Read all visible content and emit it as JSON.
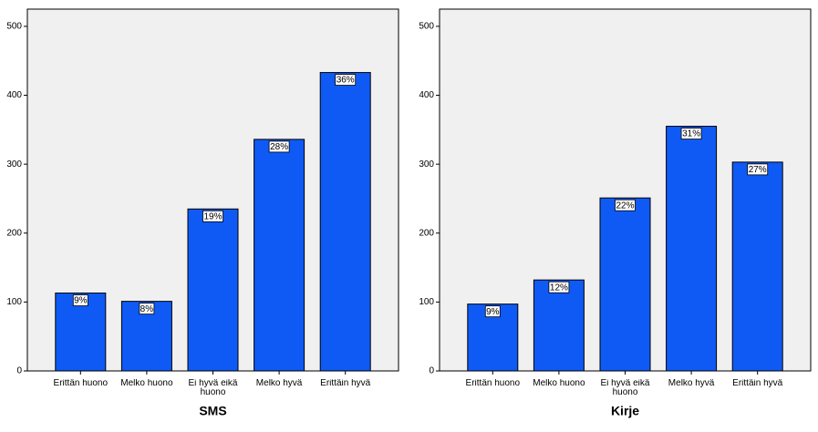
{
  "chart_data": [
    {
      "type": "bar",
      "title": "SMS",
      "categories": [
        "Erittän huono",
        "Melko huono",
        "Ei hyvä eikä huono",
        "Melko hyvä",
        "Erittäin hyvä"
      ],
      "values": [
        113,
        101,
        235,
        336,
        433
      ],
      "percent_labels": [
        "9%",
        "8%",
        "19%",
        "28%",
        "36%"
      ],
      "color": "#0f5af5",
      "ylim": [
        0,
        525
      ],
      "yticks": [
        0,
        100,
        200,
        300,
        400,
        500
      ]
    },
    {
      "type": "bar",
      "title": "Kirje",
      "categories": [
        "Erittän huono",
        "Melko huono",
        "Ei hyvä eikä huono",
        "Melko hyvä",
        "Erittäin hyvä"
      ],
      "values": [
        97,
        132,
        251,
        355,
        303
      ],
      "percent_labels": [
        "9%",
        "12%",
        "22%",
        "31%",
        "27%"
      ],
      "color": "#0f5af5",
      "ylim": [
        0,
        525
      ],
      "yticks": [
        0,
        100,
        200,
        300,
        400,
        500
      ]
    }
  ]
}
